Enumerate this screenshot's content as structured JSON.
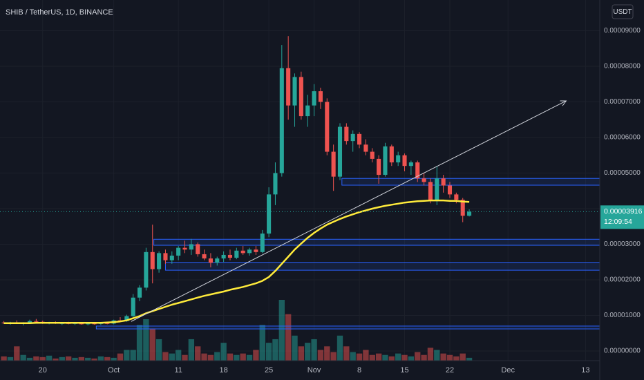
{
  "chart_data": {
    "type": "candlestick",
    "title": "SHIB / TetherUS, 1D, BINANCE",
    "currency": "USDT",
    "last_price": {
      "value": 3.916e-05,
      "label": "0.00003916"
    },
    "countdown": "12:09:54",
    "xlim": [
      -17.6,
      75.2
    ],
    "ylim": [
      -2.72e-06,
      9.864e-05
    ],
    "grid": true,
    "up_color": "#26a69a",
    "down_color": "#ef5350",
    "ma_color": "#ffeb3b",
    "zone_color": "#2962ff",
    "trend_color": "#d1d4dc",
    "xticks": [
      {
        "value": -11,
        "label": "20"
      },
      {
        "value": 0,
        "label": "Oct"
      },
      {
        "value": 10,
        "label": "11"
      },
      {
        "value": 17,
        "label": "18"
      },
      {
        "value": 24,
        "label": "25"
      },
      {
        "value": 31,
        "label": "Nov"
      },
      {
        "value": 38,
        "label": "8"
      },
      {
        "value": 45,
        "label": "15"
      },
      {
        "value": 52,
        "label": "22"
      },
      {
        "value": 61,
        "label": "Dec"
      },
      {
        "value": 73,
        "label": "13"
      }
    ],
    "yticks": [
      {
        "value": 0,
        "label": "0.00000000"
      },
      {
        "value": 1e-05,
        "label": "0.00001000"
      },
      {
        "value": 2e-05,
        "label": "0.00002000"
      },
      {
        "value": 3e-05,
        "label": "0.00003000"
      },
      {
        "value": 4e-05,
        "label": "0.00004000"
      },
      {
        "value": 5e-05,
        "label": "0.00005000"
      },
      {
        "value": 6e-05,
        "label": "0.00006000"
      },
      {
        "value": 7e-05,
        "label": "0.00007000"
      },
      {
        "value": 8e-05,
        "label": "0.00008000"
      },
      {
        "value": 9e-05,
        "label": "0.00009000"
      }
    ],
    "x": [
      -17,
      -16,
      -15,
      -14,
      -13,
      -12,
      -11,
      -10,
      -9,
      -8,
      -7,
      -6,
      -5,
      -4,
      -3,
      -2,
      -1,
      0,
      1,
      2,
      3,
      4,
      5,
      6,
      7,
      8,
      9,
      10,
      11,
      12,
      13,
      14,
      15,
      16,
      17,
      18,
      19,
      20,
      21,
      22,
      23,
      24,
      25,
      26,
      27,
      28,
      29,
      30,
      31,
      32,
      33,
      34,
      35,
      36,
      37,
      38,
      39,
      40,
      41,
      42,
      43,
      44,
      45,
      46,
      47,
      48,
      49,
      50,
      51,
      52,
      53,
      54,
      55
    ],
    "ohlc": [
      [
        8e-06,
        8.4e-06,
        7.6e-06,
        7.8e-06
      ],
      [
        7.8e-06,
        8.2e-06,
        7.4e-06,
        8e-06
      ],
      [
        8e-06,
        8.6e-06,
        7.7e-06,
        7.7e-06
      ],
      [
        7.7e-06,
        8.1e-06,
        7.2e-06,
        7.9e-06
      ],
      [
        7.9e-06,
        8.8e-06,
        7.7e-06,
        8.4e-06
      ],
      [
        8.4e-06,
        9e-06,
        8e-06,
        8.2e-06
      ],
      [
        8.2e-06,
        8.5e-06,
        7.6e-06,
        7.8e-06
      ],
      [
        7.8e-06,
        8.2e-06,
        7.5e-06,
        8e-06
      ],
      [
        8e-06,
        8.3e-06,
        7.6e-06,
        7.7e-06
      ],
      [
        7.7e-06,
        8e-06,
        7.3e-06,
        7.8e-06
      ],
      [
        7.8e-06,
        8.2e-06,
        7.5e-06,
        7.6e-06
      ],
      [
        7.6e-06,
        8e-06,
        7.3e-06,
        7.8e-06
      ],
      [
        7.8e-06,
        8.1e-06,
        7.4e-06,
        7.5e-06
      ],
      [
        7.5e-06,
        7.9e-06,
        7.2e-06,
        7.7e-06
      ],
      [
        7.7e-06,
        8e-06,
        7.4e-06,
        7.6e-06
      ],
      [
        7.6e-06,
        7.9e-06,
        7.3e-06,
        7.8e-06
      ],
      [
        7.8e-06,
        8.2e-06,
        7.5e-06,
        7.7e-06
      ],
      [
        7.7e-06,
        8.8e-06,
        7.5e-06,
        8.6e-06
      ],
      [
        8.6e-06,
        9.5e-06,
        8.2e-06,
        8.4e-06
      ],
      [
        8.4e-06,
        1.02e-05,
        8.2e-06,
        9.8e-06
      ],
      [
        9.8e-06,
        1.6e-05,
        9.5e-06,
        1.5e-05
      ],
      [
        1.5e-05,
        1.85e-05,
        1.4e-05,
        1.78e-05
      ],
      [
        1.78e-05,
        2.9e-05,
        1.7e-05,
        2.78e-05
      ],
      [
        2.78e-05,
        3.55e-05,
        1.9e-05,
        2.3e-05
      ],
      [
        2.3e-05,
        2.8e-05,
        2.2e-05,
        2.75e-05
      ],
      [
        2.75e-05,
        2.85e-05,
        2.45e-05,
        2.55e-05
      ],
      [
        2.55e-05,
        2.8e-05,
        2.45e-05,
        2.68e-05
      ],
      [
        2.68e-05,
        2.95e-05,
        2.55e-05,
        2.9e-05
      ],
      [
        2.9e-05,
        3.1e-05,
        2.75e-05,
        2.85e-05
      ],
      [
        2.85e-05,
        3.15e-05,
        2.7e-05,
        3e-05
      ],
      [
        3e-05,
        3.05e-05,
        2.65e-05,
        2.72e-05
      ],
      [
        2.72e-05,
        2.85e-05,
        2.55e-05,
        2.6e-05
      ],
      [
        2.6e-05,
        2.75e-05,
        2.35e-05,
        2.48e-05
      ],
      [
        2.48e-05,
        2.65e-05,
        2.4e-05,
        2.6e-05
      ],
      [
        2.6e-05,
        2.8e-05,
        2.5e-05,
        2.7e-05
      ],
      [
        2.7e-05,
        2.85e-05,
        2.55e-05,
        2.62e-05
      ],
      [
        2.62e-05,
        2.9e-05,
        2.58e-05,
        2.82e-05
      ],
      [
        2.82e-05,
        2.95e-05,
        2.7e-05,
        2.75e-05
      ],
      [
        2.75e-05,
        2.9e-05,
        2.68e-05,
        2.85e-05
      ],
      [
        2.85e-05,
        2.95e-05,
        2.7e-05,
        2.78e-05
      ],
      [
        2.78e-05,
        3.4e-05,
        2.75e-05,
        3.3e-05
      ],
      [
        3.3e-05,
        4.6e-05,
        3.2e-05,
        4.4e-05
      ],
      [
        4.4e-05,
        5.3e-05,
        4.1e-05,
        5e-05
      ],
      [
        5e-05,
        8.6e-05,
        4.9e-05,
        7.95e-05
      ],
      [
        7.95e-05,
        8.85e-05,
        6.5e-05,
        6.9e-05
      ],
      [
        6.9e-05,
        7.8e-05,
        6.3e-05,
        7.7e-05
      ],
      [
        7.7e-05,
        7.85e-05,
        6.5e-05,
        6.6e-05
      ],
      [
        6.6e-05,
        7.2e-05,
        6.3e-05,
        6.9e-05
      ],
      [
        6.9e-05,
        7.5e-05,
        6.6e-05,
        7.3e-05
      ],
      [
        7.3e-05,
        7.4e-05,
        6.8e-05,
        7e-05
      ],
      [
        7e-05,
        7.1e-05,
        5.5e-05,
        5.6e-05
      ],
      [
        5.6e-05,
        5.8e-05,
        4.5e-05,
        4.9e-05
      ],
      [
        4.9e-05,
        6.4e-05,
        4.8e-05,
        6.3e-05
      ],
      [
        6.3e-05,
        6.4e-05,
        5.8e-05,
        5.9e-05
      ],
      [
        5.9e-05,
        6.2e-05,
        5.6e-05,
        6.1e-05
      ],
      [
        6.1e-05,
        6.15e-05,
        5.7e-05,
        5.8e-05
      ],
      [
        5.8e-05,
        5.95e-05,
        5.5e-05,
        5.6e-05
      ],
      [
        5.6e-05,
        5.7e-05,
        5.3e-05,
        5.4e-05
      ],
      [
        5.4e-05,
        5.5e-05,
        4.7e-05,
        4.95e-05
      ],
      [
        4.95e-05,
        5.85e-05,
        4.9e-05,
        5.75e-05
      ],
      [
        5.75e-05,
        5.8e-05,
        5.2e-05,
        5.3e-05
      ],
      [
        5.3e-05,
        5.6e-05,
        5.2e-05,
        5.5e-05
      ],
      [
        5.5e-05,
        5.55e-05,
        5.05e-05,
        5.2e-05
      ],
      [
        5.2e-05,
        5.35e-05,
        4.95e-05,
        5.3e-05
      ],
      [
        5.3e-05,
        5.35e-05,
        4.75e-05,
        4.85e-05
      ],
      [
        4.85e-05,
        5e-05,
        4.65e-05,
        4.75e-05
      ],
      [
        4.75e-05,
        4.85e-05,
        4.15e-05,
        4.25e-05
      ],
      [
        4.25e-05,
        5.2e-05,
        4.1e-05,
        4.85e-05
      ],
      [
        4.85e-05,
        4.95e-05,
        4.45e-05,
        4.65e-05
      ],
      [
        4.65e-05,
        4.75e-05,
        4.3e-05,
        4.4e-05
      ],
      [
        4.4e-05,
        4.45e-05,
        4.15e-05,
        4.25e-05
      ],
      [
        4.25e-05,
        4.3e-05,
        3.62e-05,
        3.8e-05
      ],
      [
        3.8e-05,
        3.98e-05,
        3.78e-05,
        3.916e-05
      ]
    ],
    "volume": [
      6,
      5,
      20,
      8,
      4,
      6,
      5,
      7,
      3,
      5,
      6,
      4,
      5,
      4,
      3,
      6,
      5,
      4,
      10,
      15,
      15,
      50,
      58,
      45,
      30,
      12,
      10,
      15,
      8,
      30,
      20,
      10,
      8,
      12,
      25,
      10,
      8,
      10,
      8,
      15,
      50,
      25,
      30,
      85,
      65,
      35,
      20,
      25,
      30,
      15,
      20,
      12,
      35,
      20,
      12,
      10,
      15,
      8,
      10,
      8,
      6,
      10,
      8,
      6,
      12,
      8,
      18,
      15,
      10,
      8,
      6,
      10,
      4
    ],
    "ma": [
      7.8e-06,
      7.8e-06,
      7.8e-06,
      7.8e-06,
      7.8e-06,
      7.9e-06,
      7.9e-06,
      7.9e-06,
      7.9e-06,
      7.9e-06,
      7.9e-06,
      7.9e-06,
      7.9e-06,
      7.9e-06,
      7.9e-06,
      7.9e-06,
      8e-06,
      8.1e-06,
      8.3e-06,
      8.6e-06,
      9.2e-06,
      9.8e-06,
      1.06e-05,
      1.12e-05,
      1.18e-05,
      1.24e-05,
      1.3e-05,
      1.35e-05,
      1.4e-05,
      1.45e-05,
      1.5e-05,
      1.55e-05,
      1.59e-05,
      1.63e-05,
      1.67e-05,
      1.72e-05,
      1.76e-05,
      1.8e-05,
      1.85e-05,
      1.9e-05,
      1.97e-05,
      2.08e-05,
      2.25e-05,
      2.45e-05,
      2.65e-05,
      2.85e-05,
      3.02e-05,
      3.18e-05,
      3.32e-05,
      3.44e-05,
      3.55e-05,
      3.63e-05,
      3.71e-05,
      3.78e-05,
      3.84e-05,
      3.9e-05,
      3.95e-05,
      4e-05,
      4.04e-05,
      4.08e-05,
      4.11e-05,
      4.14e-05,
      4.17e-05,
      4.19e-05,
      4.21e-05,
      4.22e-05,
      4.23e-05,
      4.23e-05,
      4.23e-05,
      4.22e-05,
      4.22e-05,
      4.2e-05,
      4.19e-05
    ],
    "zones": [
      {
        "from": 35.3,
        "top": 4.85e-05,
        "bottom": 4.66e-05
      },
      {
        "from": 6.2,
        "top": 3.14e-05,
        "bottom": 2.97e-05
      },
      {
        "from": 8.0,
        "top": 2.49e-05,
        "bottom": 2.27e-05
      },
      {
        "from": -2.7,
        "top": 7e-06,
        "bottom": 6.2e-06
      }
    ],
    "trendline": {
      "x": [
        2.7,
        70
      ],
      "y": [
        8.3e-06,
        7.03e-05
      ]
    }
  }
}
